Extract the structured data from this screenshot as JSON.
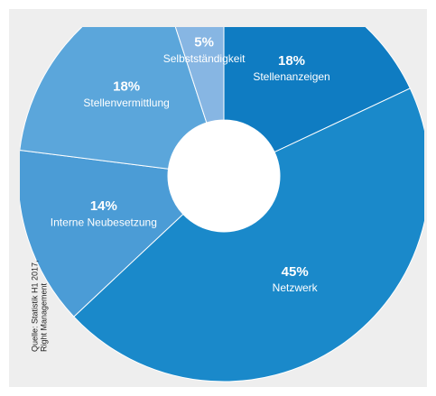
{
  "chart_data": {
    "type": "pie",
    "donut": true,
    "categories": [
      "Stellenanzeigen",
      "Netzwerk",
      "Interne Neubesetzung",
      "Stellenvermittlung",
      "Selbstständigkeit"
    ],
    "values": [
      18,
      45,
      14,
      18,
      5
    ],
    "value_labels": [
      "18%",
      "45%",
      "14%",
      "18%",
      "5%"
    ],
    "colors": [
      "#0f7cc2",
      "#1a89ca",
      "#4b9cd6",
      "#5ba6db",
      "#87b6e3"
    ],
    "source": [
      "Quelle: Statistik H1 2017,",
      "Right Management"
    ]
  }
}
